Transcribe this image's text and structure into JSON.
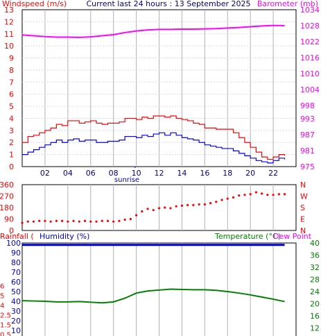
{
  "header": {
    "left_title": "Windspeed (m/s)",
    "center_title": "Current last 24 hours : 13 September 2025",
    "right_title": "Barometer (mb)"
  },
  "colors": {
    "wind_avg": "#0000ff",
    "wind_gust": "#ff0000",
    "barometer": "#ff00ff",
    "direction": "#ff0000",
    "humidity": "#0000cc",
    "temperature": "#008000",
    "dewpoint": "#ff00ff",
    "grid": "#b0b0c0",
    "axis_left": "#ff0000",
    "axis_right_baro": "#ff00ff",
    "axis_right_temp": "#008000"
  },
  "labels": {
    "sunrise": "sunrise",
    "rainfall": "Rainfall (mm)",
    "humidity": "Humidity (%)",
    "temperature": "Temperature (°C)",
    "dewpoint": "Dew Point"
  },
  "chart_data": [
    {
      "type": "line",
      "name": "wind-barometer",
      "title": "Current last 24 hours : 13 September 2025",
      "ylabel": "Windspeed (m/s)",
      "ylabel_right": "Barometer (mb)",
      "ylim": [
        0,
        13
      ],
      "ylim_right": [
        975,
        1034
      ],
      "x_ticks": [
        "02",
        "04",
        "06",
        "08",
        "10",
        "12",
        "14",
        "16",
        "18",
        "20",
        "22"
      ],
      "x_tick_hours": [
        2,
        4,
        6,
        8,
        10,
        12,
        14,
        16,
        18,
        20,
        22
      ],
      "y_ticks": [
        "0",
        "1",
        "2",
        "3",
        "4",
        "5",
        "6",
        "7",
        "8",
        "9",
        "10",
        "11",
        "12",
        "13"
      ],
      "y_ticks_right": [
        "975",
        "981",
        "987",
        "993",
        "998",
        "1004",
        "1010",
        "1016",
        "1022",
        "1028",
        "1034"
      ],
      "sunrise_hour": 9.9,
      "series": [
        {
          "name": "Windspeed gust",
          "x": [
            0,
            0.5,
            1,
            1.5,
            2,
            2.5,
            3,
            3.5,
            4,
            4.5,
            5,
            5.5,
            6,
            6.5,
            7,
            7.5,
            8,
            8.5,
            9,
            9.5,
            10,
            10.5,
            11,
            11.5,
            12,
            12.5,
            13,
            13.5,
            14,
            14.5,
            15,
            15.5,
            16,
            16.5,
            17,
            17.5,
            18,
            18.5,
            19,
            19.5,
            20,
            20.5,
            21,
            21.5,
            22,
            22.5,
            23
          ],
          "values": [
            2,
            2.5,
            2.6,
            2.8,
            3,
            3.2,
            3.5,
            3.4,
            3.8,
            3.8,
            3.6,
            3.7,
            3.8,
            3.6,
            3.5,
            3.6,
            3.6,
            3.7,
            4,
            4,
            3.9,
            4.1,
            4,
            4.2,
            4.2,
            4.1,
            4.2,
            4,
            3.9,
            3.8,
            3.6,
            3.5,
            3.2,
            3.2,
            3.1,
            3.1,
            3.1,
            2.8,
            2.4,
            2,
            1.6,
            1.2,
            0.8,
            0.6,
            0.8,
            1,
            0.9
          ]
        },
        {
          "name": "Windspeed average",
          "x": [
            0,
            0.5,
            1,
            1.5,
            2,
            2.5,
            3,
            3.5,
            4,
            4.5,
            5,
            5.5,
            6,
            6.5,
            7,
            7.5,
            8,
            8.5,
            9,
            9.5,
            10,
            10.5,
            11,
            11.5,
            12,
            12.5,
            13,
            13.5,
            14,
            14.5,
            15,
            15.5,
            16,
            16.5,
            17,
            17.5,
            18,
            18.5,
            19,
            19.5,
            20,
            20.5,
            21,
            21.5,
            22,
            22.5,
            23
          ],
          "values": [
            1,
            1.2,
            1.4,
            1.6,
            1.8,
            2,
            2.2,
            2,
            2.2,
            2.3,
            2.1,
            2.2,
            2.2,
            2,
            2,
            2.1,
            2.1,
            2.2,
            2.5,
            2.5,
            2.4,
            2.6,
            2.5,
            2.7,
            2.8,
            2.6,
            2.8,
            2.6,
            2.4,
            2.3,
            2.2,
            2,
            1.8,
            1.7,
            1.6,
            1.5,
            1.5,
            1.3,
            1.1,
            0.9,
            0.7,
            0.5,
            0.4,
            0.3,
            0.5,
            0.7,
            0.6
          ]
        },
        {
          "name": "Barometer",
          "x": [
            0,
            1,
            2,
            3,
            4,
            5,
            6,
            7,
            8,
            9,
            10,
            11,
            12,
            13,
            14,
            15,
            16,
            17,
            18,
            19,
            20,
            21,
            22,
            23
          ],
          "values": [
            1024.5,
            1024.2,
            1023.9,
            1023.7,
            1023.7,
            1023.6,
            1023.8,
            1024.2,
            1024.6,
            1025.4,
            1026,
            1026.4,
            1026.6,
            1026.6,
            1026.7,
            1026.7,
            1026.8,
            1026.9,
            1027.1,
            1027.3,
            1027.6,
            1027.9,
            1028.1,
            1028
          ]
        }
      ]
    },
    {
      "type": "scatter",
      "name": "wind-direction",
      "ylim": [
        0,
        360
      ],
      "y_ticks": [
        "0",
        "90",
        "180",
        "270",
        "360"
      ],
      "y_ticks_right": [
        "N",
        "E",
        "S",
        "W",
        "N"
      ],
      "series": [
        {
          "name": "Wind direction",
          "x": [
            0,
            0.5,
            1,
            1.5,
            2,
            2.5,
            3,
            3.5,
            4,
            4.5,
            5,
            5.5,
            6,
            6.5,
            7,
            7.5,
            8,
            8.5,
            9,
            9.5,
            10,
            10.5,
            11,
            11.5,
            12,
            12.5,
            13,
            13.5,
            14,
            14.5,
            15,
            15.5,
            16,
            16.5,
            17,
            17.5,
            18,
            18.5,
            19,
            19.5,
            20,
            20.5,
            21,
            21.5,
            22,
            22.5,
            23
          ],
          "values": [
            60,
            70,
            70,
            75,
            75,
            70,
            75,
            75,
            70,
            75,
            70,
            75,
            70,
            70,
            75,
            75,
            70,
            75,
            85,
            90,
            120,
            150,
            170,
            160,
            175,
            180,
            175,
            190,
            195,
            200,
            200,
            205,
            205,
            215,
            225,
            240,
            250,
            260,
            275,
            280,
            285,
            300,
            290,
            280,
            280,
            285,
            285
          ]
        }
      ]
    },
    {
      "type": "line",
      "name": "humidity-temperature",
      "ylim": [
        0,
        100
      ],
      "ylim_right": [
        8,
        40
      ],
      "y_ticks": [
        "10",
        "20",
        "30",
        "40",
        "50",
        "60",
        "70",
        "80",
        "90",
        "100"
      ],
      "y_ticks_outer": [
        "0.5",
        "1.5",
        "2.5",
        "4",
        "5",
        "6"
      ],
      "y_ticks_right": [
        "40",
        "36",
        "32",
        "28",
        "24",
        "20",
        "16",
        "12",
        "8"
      ],
      "series": [
        {
          "name": "Humidity",
          "x": [
            0,
            23
          ],
          "values": [
            98,
            98
          ]
        },
        {
          "name": "Temperature",
          "x": [
            0,
            1,
            2,
            3,
            4,
            5,
            6,
            7,
            8,
            9,
            10,
            11,
            12,
            13,
            14,
            15,
            16,
            17,
            18,
            19,
            20,
            21,
            22,
            23
          ],
          "values": [
            21,
            20.9,
            20.8,
            20.6,
            20.6,
            20.7,
            20.5,
            20.3,
            20.6,
            21.8,
            23.5,
            24.2,
            24.5,
            24.8,
            24.7,
            24.6,
            24.6,
            24.4,
            24,
            23.5,
            22.9,
            22.2,
            21.5,
            20.7
          ]
        }
      ]
    }
  ]
}
